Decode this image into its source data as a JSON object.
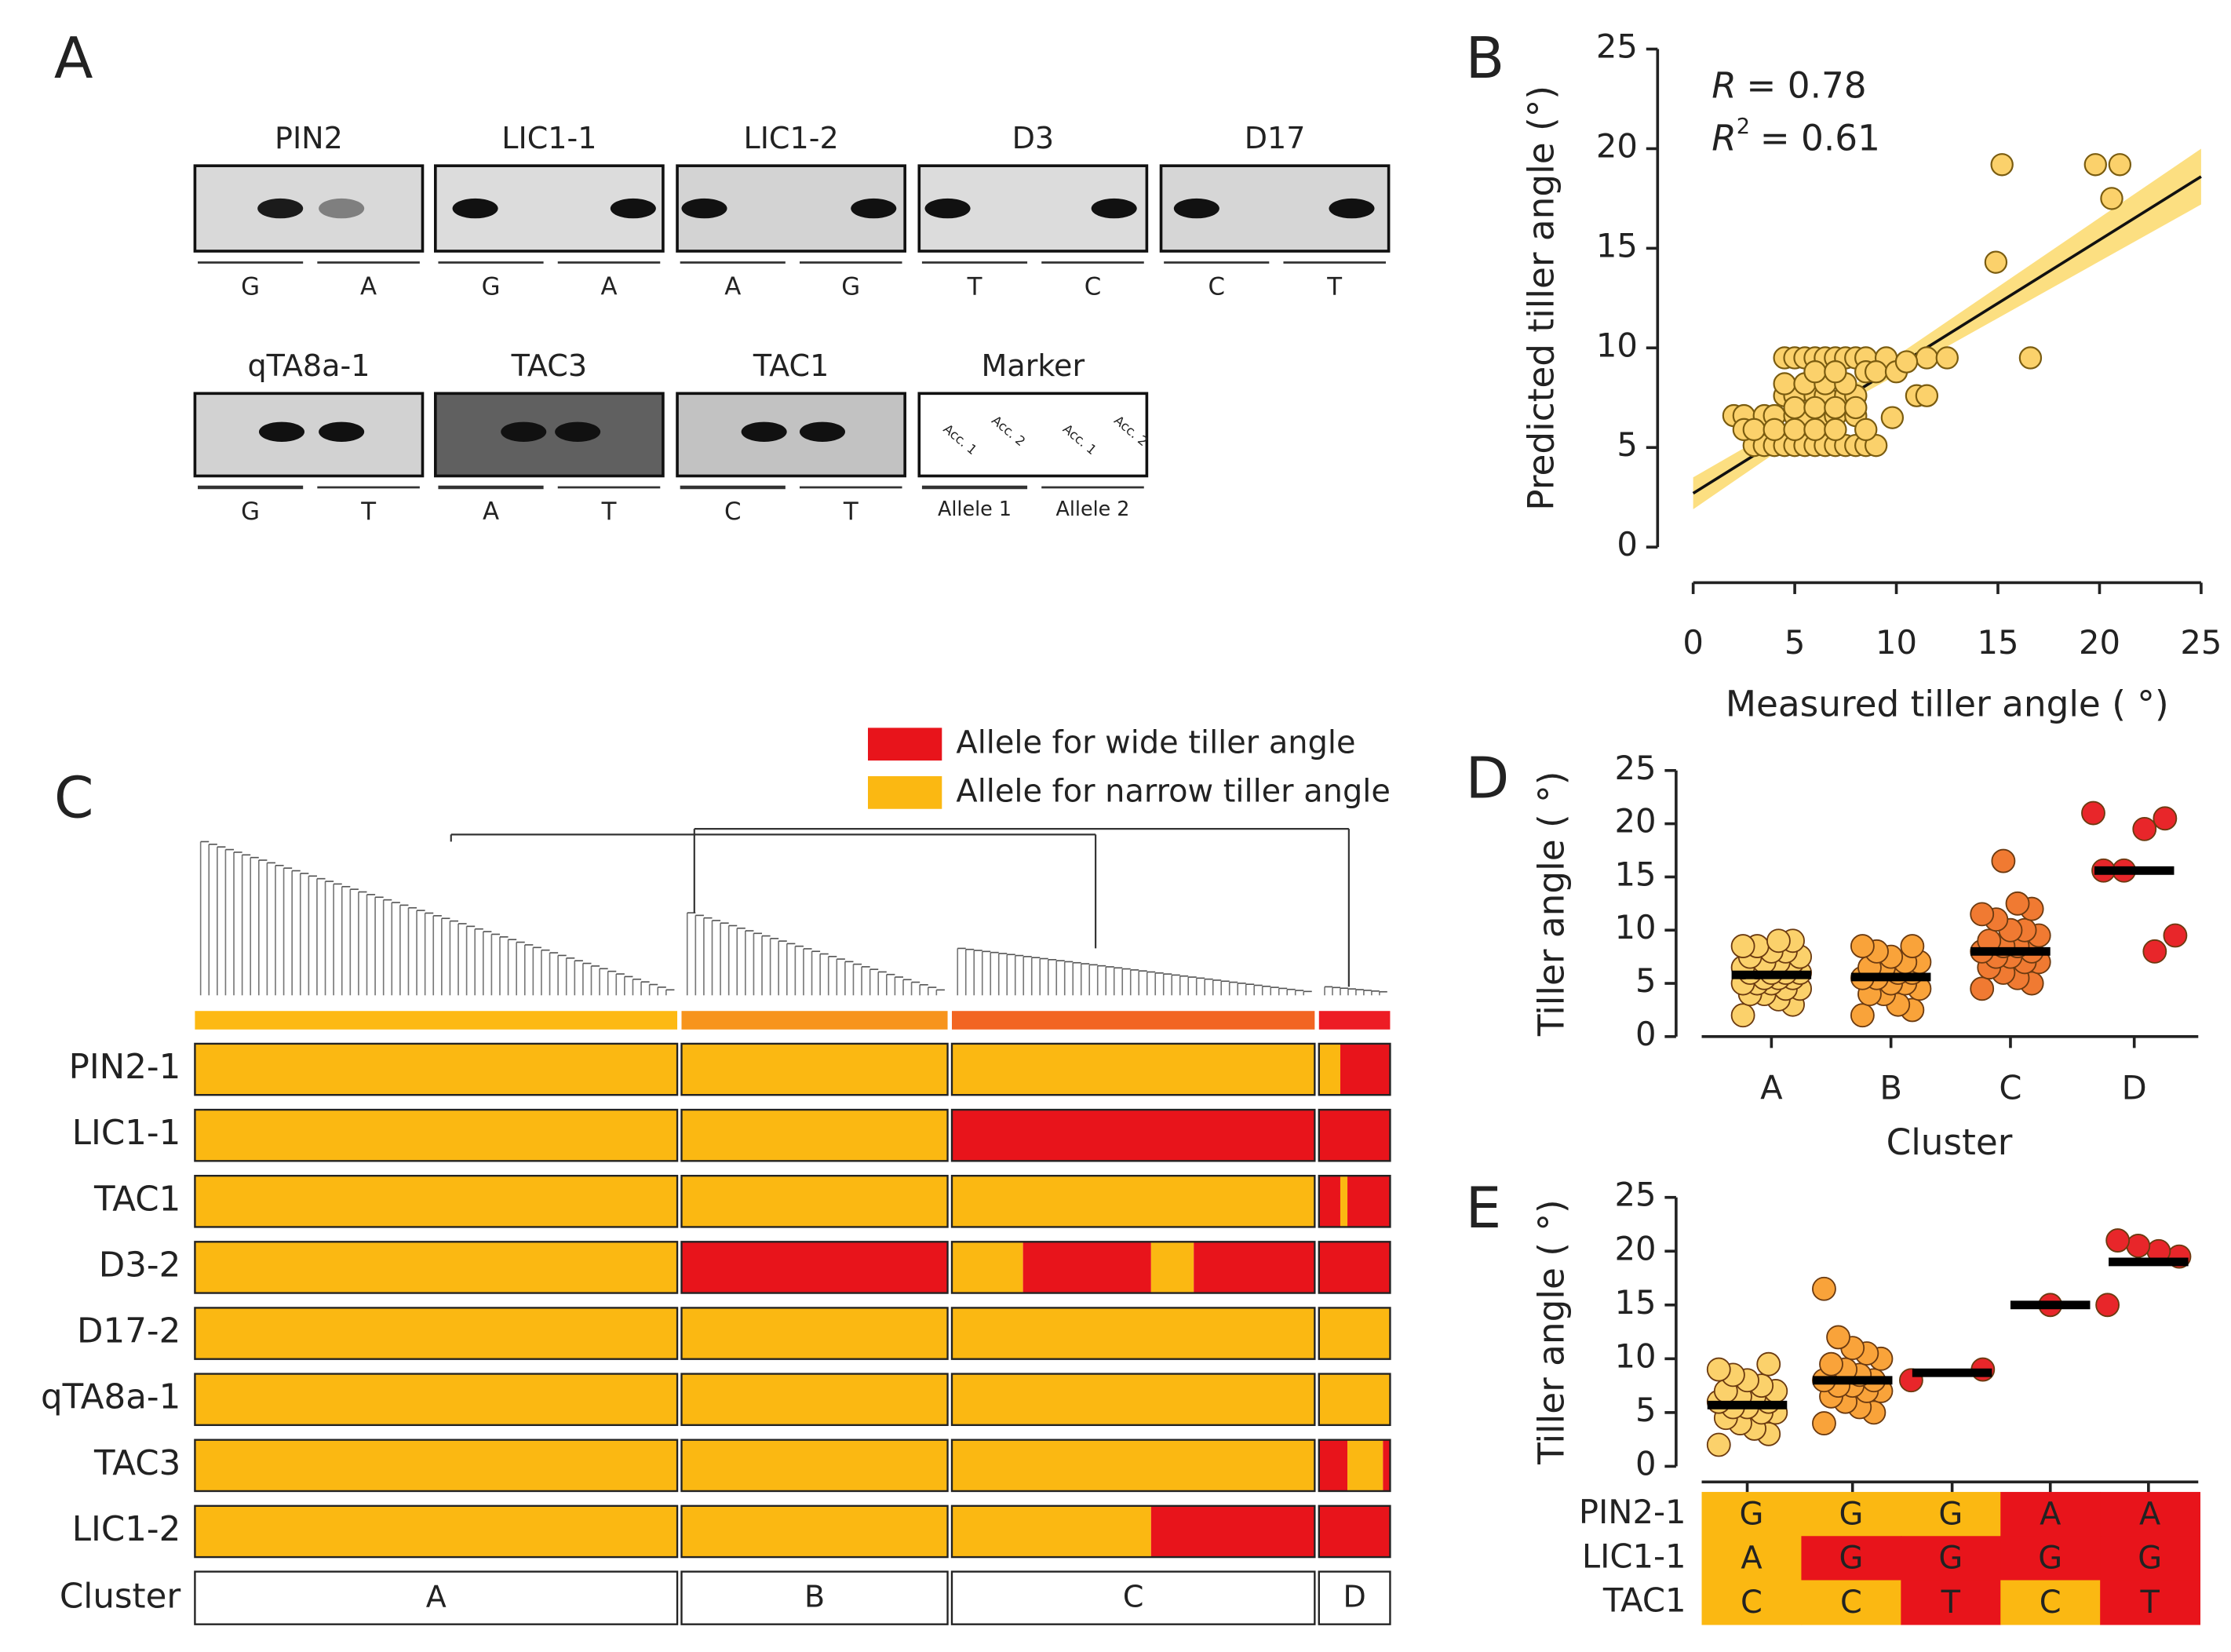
{
  "panel_labels": [
    "A",
    "B",
    "C",
    "D",
    "E"
  ],
  "gels": [
    {
      "name": "PIN2",
      "alleles": [
        "G",
        "A"
      ]
    },
    {
      "name": "LIC1-1",
      "alleles": [
        "G",
        "A"
      ]
    },
    {
      "name": "LIC1-2",
      "alleles": [
        "A",
        "G"
      ]
    },
    {
      "name": "D3",
      "alleles": [
        "T",
        "C"
      ]
    },
    {
      "name": "D17",
      "alleles": [
        "C",
        "T"
      ]
    },
    {
      "name": "qTA8a-1",
      "alleles": [
        "G",
        "T"
      ]
    },
    {
      "name": "TAC3",
      "alleles": [
        "A",
        "T"
      ]
    },
    {
      "name": "TAC1",
      "alleles": [
        "C",
        "T"
      ]
    }
  ],
  "marker": {
    "name": "Marker",
    "lane_text": [
      "Acc. 1",
      "Acc. 2",
      "Acc. 1",
      "Acc. 2"
    ],
    "alleles": [
      "Allele 1",
      "Allele 2"
    ]
  },
  "genotype_map": {
    "legend": [
      {
        "label": "Allele for wide tiller angle",
        "color": "#e8141b"
      },
      {
        "label": "Allele for narrow tiller angle",
        "color": "#fbb812"
      }
    ],
    "cluster_label": "Cluster",
    "clusters": [
      "A",
      "B",
      "C",
      "D"
    ],
    "cluster_colors": [
      "#fdb913",
      "#f7941d",
      "#f26522",
      "#ed1c24"
    ],
    "rows": [
      {
        "name": "PIN2-1",
        "segments": [
          [
            {
              "n": 68,
              "wide": false
            }
          ],
          [
            {
              "n": 37,
              "wide": false
            }
          ],
          [
            {
              "n": 51,
              "wide": false
            }
          ],
          [
            {
              "n": 3,
              "wide": false
            },
            {
              "n": 7,
              "wide": true
            }
          ]
        ]
      },
      {
        "name": "LIC1-1",
        "segments": [
          [
            {
              "n": 68,
              "wide": false
            }
          ],
          [
            {
              "n": 37,
              "wide": false
            }
          ],
          [
            {
              "n": 51,
              "wide": true
            }
          ],
          [
            {
              "n": 10,
              "wide": true
            }
          ]
        ]
      },
      {
        "name": "TAC1",
        "segments": [
          [
            {
              "n": 68,
              "wide": false
            }
          ],
          [
            {
              "n": 37,
              "wide": false
            }
          ],
          [
            {
              "n": 51,
              "wide": false
            }
          ],
          [
            {
              "n": 3,
              "wide": true
            },
            {
              "n": 1,
              "wide": false
            },
            {
              "n": 6,
              "wide": true
            }
          ]
        ]
      },
      {
        "name": "D3-2",
        "segments": [
          [
            {
              "n": 68,
              "wide": false
            }
          ],
          [
            {
              "n": 37,
              "wide": true
            }
          ],
          [
            {
              "n": 10,
              "wide": false
            },
            {
              "n": 18,
              "wide": true
            },
            {
              "n": 6,
              "wide": false
            },
            {
              "n": 17,
              "wide": true
            }
          ],
          [
            {
              "n": 10,
              "wide": true
            }
          ]
        ]
      },
      {
        "name": "D17-2",
        "segments": [
          [
            {
              "n": 68,
              "wide": false
            }
          ],
          [
            {
              "n": 37,
              "wide": false
            }
          ],
          [
            {
              "n": 51,
              "wide": false
            }
          ],
          [
            {
              "n": 10,
              "wide": false
            }
          ]
        ]
      },
      {
        "name": "qTA8a-1",
        "segments": [
          [
            {
              "n": 68,
              "wide": false
            }
          ],
          [
            {
              "n": 37,
              "wide": false
            }
          ],
          [
            {
              "n": 51,
              "wide": false
            }
          ],
          [
            {
              "n": 10,
              "wide": false
            }
          ]
        ]
      },
      {
        "name": "TAC3",
        "segments": [
          [
            {
              "n": 68,
              "wide": false
            }
          ],
          [
            {
              "n": 37,
              "wide": false
            }
          ],
          [
            {
              "n": 51,
              "wide": false
            }
          ],
          [
            {
              "n": 4,
              "wide": true
            },
            {
              "n": 5,
              "wide": false
            },
            {
              "n": 1,
              "wide": true
            }
          ]
        ]
      },
      {
        "name": "LIC1-2",
        "segments": [
          [
            {
              "n": 68,
              "wide": false
            }
          ],
          [
            {
              "n": 37,
              "wide": false
            }
          ],
          [
            {
              "n": 28,
              "wide": false
            },
            {
              "n": 23,
              "wide": true
            }
          ],
          [
            {
              "n": 10,
              "wide": true
            }
          ]
        ]
      }
    ]
  },
  "chart_data": [
    {
      "type": "scatter",
      "xlabel": "Measured tiller angle  ( °)",
      "ylabel": "Predicted tiller angle (°)",
      "color": "#fbd16b",
      "x": [
        3,
        3.5,
        4,
        4.5,
        5,
        5.5,
        6,
        6.5,
        7,
        7.5,
        8,
        8.5,
        9,
        4.5,
        5,
        5.5,
        6,
        6.5,
        7,
        7.5,
        8,
        8.5,
        9.5,
        11.5,
        12.5,
        2,
        2.5,
        3.5,
        4,
        5,
        5.5,
        6.5,
        7,
        8,
        2.5,
        3,
        4,
        5,
        6,
        7,
        8.5,
        4.5,
        5,
        6,
        6.5,
        7.5,
        8,
        11,
        5,
        6,
        7,
        8,
        4.5,
        5.5,
        6.5,
        7.5,
        6,
        7,
        8.5,
        9,
        10,
        10.5,
        11.5,
        15.2,
        19.8,
        21,
        20.6,
        14.9,
        16.6,
        9.8
      ],
      "y": [
        5.1,
        5.1,
        5.1,
        5.1,
        5.1,
        5.1,
        5.1,
        5.1,
        5.1,
        5.1,
        5.1,
        5.1,
        5.1,
        9.5,
        9.5,
        9.5,
        9.5,
        9.5,
        9.5,
        9.5,
        9.5,
        9.5,
        9.5,
        9.5,
        9.5,
        6.6,
        6.6,
        6.6,
        6.6,
        6.6,
        6.6,
        6.6,
        6.6,
        6.6,
        5.9,
        5.9,
        5.9,
        5.9,
        5.9,
        5.9,
        5.9,
        7.6,
        7.6,
        7.6,
        7.6,
        7.6,
        7.6,
        7.6,
        7,
        7,
        7,
        7,
        8.2,
        8.2,
        8.2,
        8.2,
        8.8,
        8.8,
        8.8,
        8.8,
        8.8,
        9.3,
        7.6,
        19.2,
        19.2,
        19.2,
        17.5,
        14.3,
        9.5,
        6.5
      ],
      "xlim": [
        0,
        25
      ],
      "ylim": [
        0,
        25
      ],
      "xticks": [
        0,
        5,
        10,
        15,
        20,
        25
      ],
      "yticks": [
        0,
        5,
        10,
        15,
        20,
        25
      ],
      "annotations": [
        {
          "var": "R",
          "text": "= 0.78"
        },
        {
          "var": "R",
          "sup": "2",
          "text": "= 0.61"
        }
      ],
      "fit": {
        "x": [
          0,
          25
        ],
        "y": [
          2.7,
          18.6
        ],
        "color": "#111111"
      },
      "band": {
        "x": [
          0,
          8,
          25
        ],
        "lower": [
          1.9,
          7.5,
          17.2
        ],
        "upper": [
          3.5,
          8.2,
          20
        ],
        "color": "#fbd96b"
      }
    },
    {
      "type": "strip",
      "ylabel": "Tiller angle ( °)",
      "xlabel": "Cluster",
      "categories": [
        "A",
        "B",
        "C",
        "D"
      ],
      "colors": [
        "#fbd16b",
        "#f9a33a",
        "#f07a32",
        "#e8262a"
      ],
      "points": [
        [
          2,
          3,
          3.5,
          4,
          4,
          4.5,
          4.5,
          5,
          5,
          5,
          5.5,
          5.5,
          5.5,
          6,
          6,
          6,
          6,
          6.5,
          6.5,
          7,
          7,
          7,
          7.5,
          7.5,
          8,
          8,
          8.5,
          8.5,
          9,
          9
        ],
        [
          2,
          2.5,
          3,
          4,
          4,
          4.5,
          5,
          5,
          5.5,
          5.5,
          6,
          6,
          6.5,
          6.5,
          7,
          7,
          7.5,
          8,
          8.5,
          8.5
        ],
        [
          4.5,
          5,
          5.5,
          6,
          6.5,
          7,
          7,
          7.5,
          7.5,
          8,
          8,
          8.5,
          8.5,
          9,
          9.5,
          10,
          10,
          11,
          11.5,
          12,
          12.5,
          16.5
        ],
        [
          21,
          20.5,
          19.5,
          15.6,
          15.6,
          9.5,
          8
        ]
      ],
      "medians": [
        5.8,
        5.6,
        8,
        15.6
      ],
      "ylim": [
        0,
        25
      ],
      "yticks": [
        0,
        5,
        10,
        15,
        20,
        25
      ]
    },
    {
      "type": "strip",
      "ylabel": "Tiller angle ( °)",
      "colors": [
        "#fbd16b",
        "#f9a33a",
        "#e8262a",
        "#e8262a",
        "#e8262a"
      ],
      "points": [
        [
          2,
          3,
          3.5,
          4,
          4.5,
          5,
          5,
          5.5,
          5.5,
          6,
          6,
          6.5,
          6.5,
          7,
          7,
          7.5,
          8,
          8.5,
          9,
          9.5
        ],
        [
          4,
          5,
          5.5,
          6,
          6.5,
          7,
          7,
          7.5,
          7.5,
          8,
          8,
          8.5,
          9,
          9.5,
          10,
          10.5,
          11,
          12,
          16.5
        ],
        [
          8,
          9
        ],
        [
          15
        ],
        [
          15,
          19.5,
          20,
          20.5,
          21
        ]
      ],
      "medians": [
        5.7,
        8,
        8.7,
        15,
        19
      ],
      "ylim": [
        0,
        25
      ],
      "yticks": [
        0,
        5,
        10,
        15,
        20,
        25
      ],
      "genotype_table": {
        "rows": [
          {
            "name": "PIN2-1",
            "alleles": [
              "G",
              "G",
              "G",
              "A",
              "A"
            ],
            "wide": [
              false,
              false,
              false,
              true,
              true
            ]
          },
          {
            "name": "LIC1-1",
            "alleles": [
              "A",
              "G",
              "G",
              "G",
              "G"
            ],
            "wide": [
              false,
              true,
              true,
              true,
              true
            ]
          },
          {
            "name": "TAC1",
            "alleles": [
              "C",
              "C",
              "T",
              "C",
              "T"
            ],
            "wide": [
              false,
              false,
              true,
              false,
              true
            ]
          }
        ]
      }
    }
  ]
}
